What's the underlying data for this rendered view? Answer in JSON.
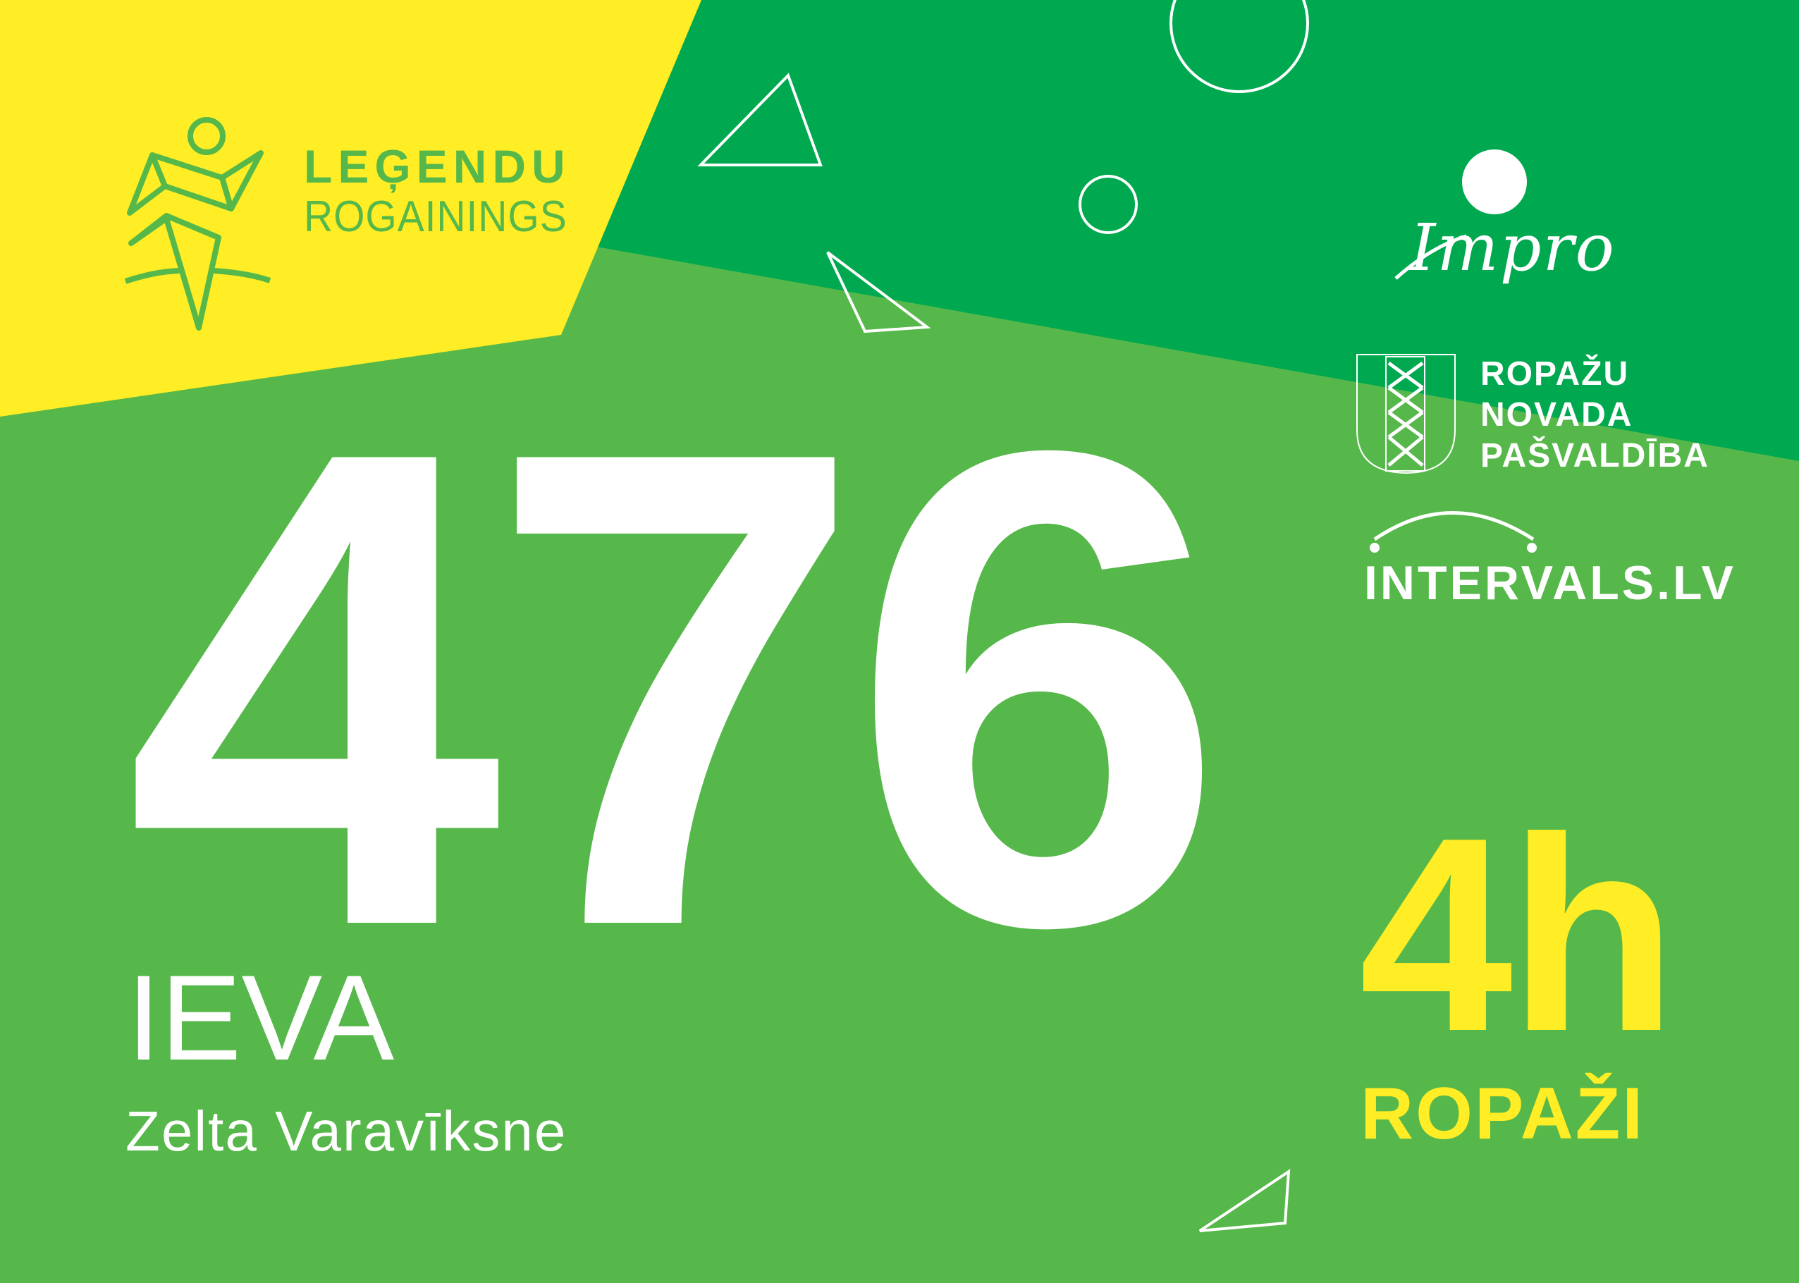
{
  "colors": {
    "yellow": "#ffed25",
    "dark_green": "#00a94f",
    "light_green": "#56b84a",
    "white": "#ffffff"
  },
  "organizer_logo": {
    "line1": "LEĢENDU",
    "line2": "ROGAININGS"
  },
  "bib_number": "476",
  "participant": {
    "first_name": "IEVA",
    "team": "Zelta Varavīksne"
  },
  "event": {
    "duration": "4h",
    "location": "ROPAŽI"
  },
  "sponsors": {
    "impro": "Impro",
    "municipality": [
      "ROPAŽU",
      "NOVADA",
      "PAŠVALDĪBA"
    ],
    "intervals": "INTERVALS.LV"
  }
}
